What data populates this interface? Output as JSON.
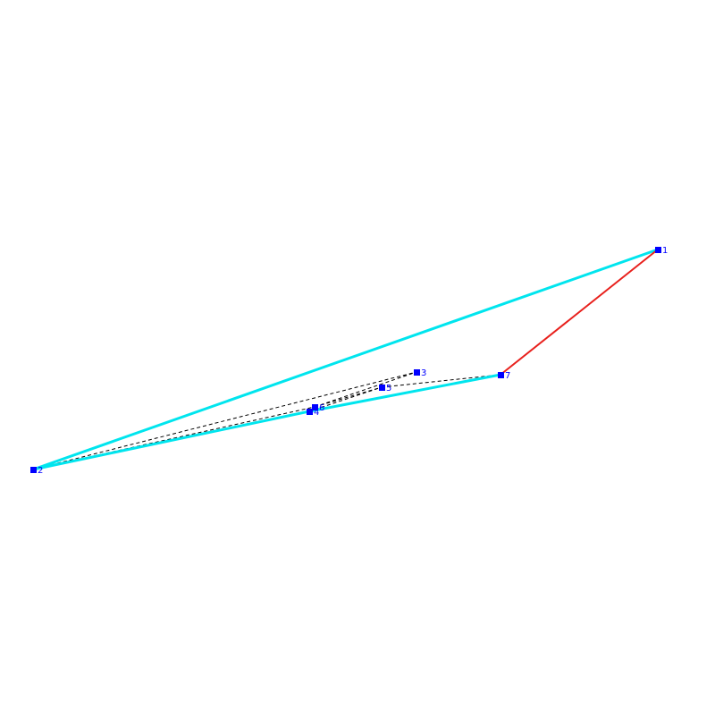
{
  "colors": {
    "background": "#ffffff",
    "hull_edge": "#00e5ee",
    "highlight_edge": "#e8201c",
    "construction_line": "#000000",
    "point_fill": "#0000ff",
    "label_text": "#0000ff"
  },
  "graph": {
    "points": [
      {
        "id": "p1",
        "label": "1"
      },
      {
        "id": "p2",
        "label": "2"
      },
      {
        "id": "p3",
        "label": "3"
      },
      {
        "id": "p4",
        "label": "4"
      },
      {
        "id": "p5",
        "label": "5"
      },
      {
        "id": "p6",
        "label": "6"
      },
      {
        "id": "p7",
        "label": "7"
      }
    ],
    "hull_edges": [
      {
        "from": "p1",
        "to": "p2"
      },
      {
        "from": "p2",
        "to": "p4"
      },
      {
        "from": "p4",
        "to": "p7"
      }
    ],
    "highlight_edges": [
      {
        "from": "p7",
        "to": "p1"
      }
    ],
    "dashed_edges": [
      {
        "from": "p2",
        "to": "p3"
      },
      {
        "from": "p2",
        "to": "p6"
      },
      {
        "from": "p6",
        "to": "p3"
      },
      {
        "from": "p6",
        "to": "p5"
      },
      {
        "from": "p4",
        "to": "p5"
      },
      {
        "from": "p4",
        "to": "p6"
      },
      {
        "from": "p5",
        "to": "p7"
      },
      {
        "from": "p1",
        "to": "p2"
      }
    ]
  }
}
